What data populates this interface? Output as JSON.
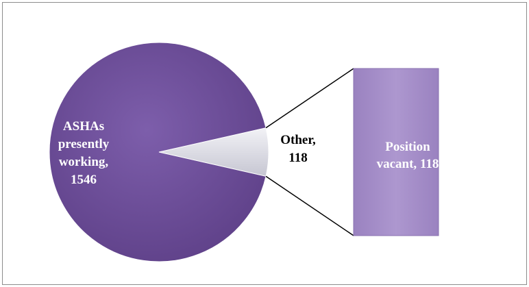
{
  "chart_data": {
    "type": "pie",
    "categories": [
      "ASHAs presently working",
      "Other"
    ],
    "values": [
      1546,
      118
    ],
    "value_labels": [
      "ASHAs presently working, 1546",
      "Other, 118"
    ],
    "colors": [
      "#6f4f9c",
      "#d9d9e2"
    ],
    "bar": {
      "categories": [
        "Position vacant"
      ],
      "values": [
        118
      ],
      "value_labels": [
        "Position vacant, 118"
      ],
      "color": "#a68fca"
    }
  }
}
